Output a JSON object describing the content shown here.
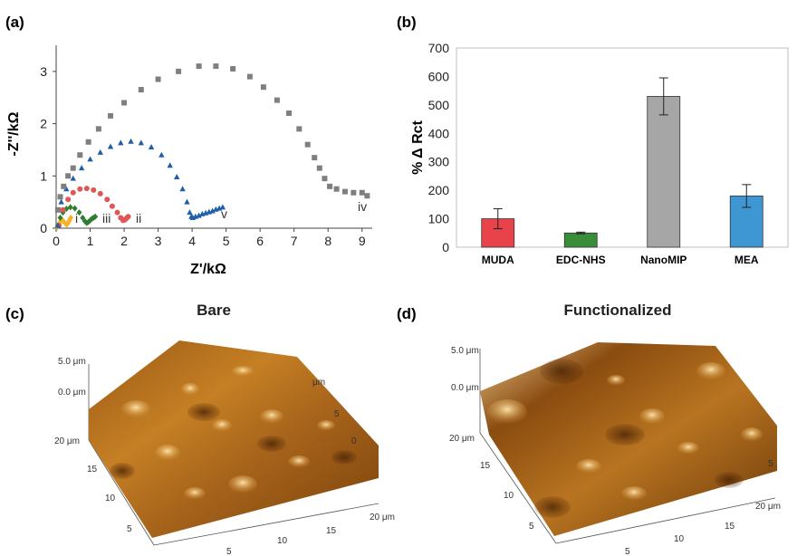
{
  "panels": {
    "a": {
      "label": "(a)"
    },
    "b": {
      "label": "(b)"
    },
    "c": {
      "label": "(c)",
      "title": "Bare"
    },
    "d": {
      "label": "(d)",
      "title": "Functionalized"
    }
  },
  "chart_data": [
    {
      "type": "scatter",
      "xlabel": "Z'/kΩ",
      "ylabel": "-Z''/kΩ",
      "xlim": [
        0,
        9.3
      ],
      "ylim": [
        0,
        3.5
      ],
      "x_ticks": [
        "0",
        "1",
        "2",
        "3",
        "4",
        "5",
        "6",
        "7",
        "8",
        "9"
      ],
      "y_ticks": [
        "0",
        "1",
        "2",
        "3"
      ],
      "grid": false,
      "series": [
        {
          "name": "i",
          "color": "#f5b325",
          "marker": "diamond",
          "x": [
            0.03,
            0.08,
            0.13,
            0.18,
            0.22,
            0.27,
            0.31,
            0.35,
            0.39,
            0.43
          ],
          "y": [
            0.02,
            0.08,
            0.13,
            0.15,
            0.13,
            0.09,
            0.07,
            0.1,
            0.15,
            0.2
          ]
        },
        {
          "name": "iii",
          "color": "#2e7d32",
          "marker": "diamond",
          "x": [
            0.05,
            0.12,
            0.2,
            0.3,
            0.42,
            0.55,
            0.68,
            0.78,
            0.85,
            0.9,
            0.95,
            1.0,
            1.05,
            1.1,
            1.15
          ],
          "y": [
            0.05,
            0.2,
            0.3,
            0.37,
            0.4,
            0.38,
            0.3,
            0.2,
            0.13,
            0.1,
            0.12,
            0.15,
            0.18,
            0.2,
            0.22
          ]
        },
        {
          "name": "ii",
          "color": "#e05555",
          "marker": "circle",
          "x": [
            0.08,
            0.2,
            0.35,
            0.5,
            0.7,
            0.9,
            1.1,
            1.3,
            1.5,
            1.65,
            1.8,
            1.9,
            1.97,
            2.02,
            2.07,
            2.12
          ],
          "y": [
            0.05,
            0.35,
            0.55,
            0.68,
            0.75,
            0.76,
            0.73,
            0.66,
            0.55,
            0.42,
            0.3,
            0.2,
            0.15,
            0.16,
            0.19,
            0.22
          ]
        },
        {
          "name": "v",
          "color": "#1f5fa8",
          "marker": "triangle",
          "x": [
            0.05,
            0.15,
            0.3,
            0.5,
            0.75,
            1.0,
            1.3,
            1.6,
            1.9,
            2.2,
            2.5,
            2.8,
            3.1,
            3.35,
            3.55,
            3.72,
            3.85,
            3.93,
            3.98,
            4.02,
            4.1,
            4.2,
            4.3,
            4.4,
            4.5,
            4.6,
            4.7,
            4.8,
            4.9
          ],
          "y": [
            0.05,
            0.5,
            0.75,
            0.95,
            1.15,
            1.32,
            1.45,
            1.56,
            1.63,
            1.66,
            1.63,
            1.55,
            1.4,
            1.2,
            0.98,
            0.75,
            0.5,
            0.3,
            0.22,
            0.2,
            0.22,
            0.24,
            0.27,
            0.29,
            0.31,
            0.33,
            0.36,
            0.38,
            0.4
          ]
        },
        {
          "name": "iv",
          "color": "#7f7f7f",
          "marker": "square",
          "x": [
            0.05,
            0.12,
            0.22,
            0.35,
            0.5,
            0.7,
            0.95,
            1.25,
            1.6,
            2.0,
            2.5,
            3.0,
            3.6,
            4.2,
            4.7,
            5.2,
            5.7,
            6.1,
            6.5,
            6.85,
            7.15,
            7.4,
            7.6,
            7.75,
            7.9,
            8.05,
            8.25,
            8.5,
            8.75,
            9.0,
            9.15
          ],
          "y": [
            0.35,
            0.6,
            0.8,
            1.0,
            1.15,
            1.4,
            1.65,
            1.9,
            2.15,
            2.4,
            2.65,
            2.85,
            3.0,
            3.1,
            3.1,
            3.05,
            2.9,
            2.7,
            2.45,
            2.2,
            1.9,
            1.6,
            1.35,
            1.15,
            0.95,
            0.8,
            0.75,
            0.7,
            0.68,
            0.68,
            0.62
          ]
        }
      ]
    },
    {
      "type": "bar",
      "ylabel": "% Δ Rct",
      "ylim": [
        0,
        700
      ],
      "y_ticks": [
        "0",
        "100",
        "200",
        "300",
        "400",
        "500",
        "600",
        "700"
      ],
      "categories": [
        "MUDA",
        "EDC-NHS",
        "NanoMIP",
        "MEA"
      ],
      "values": [
        100,
        50,
        530,
        180
      ],
      "errors": [
        35,
        3,
        65,
        40
      ],
      "colors": [
        "#e8424a",
        "#3a8e3a",
        "#a6a6a6",
        "#3e96d2"
      ],
      "grid": false
    }
  ],
  "afm": {
    "c": {
      "z_top": "5.0 μm",
      "z_zero": "0.0 μm",
      "y_ticks": [
        "20 μm",
        "15",
        "10",
        "5"
      ],
      "x_ticks": [
        "5",
        "10",
        "15",
        "20 μm"
      ],
      "right_ticks": [
        "μm",
        "5",
        "0"
      ]
    },
    "d": {
      "z_top": "5.0 μm",
      "z_zero": "0.0 μm",
      "y_ticks": [
        "20 μm",
        "15",
        "10",
        "5"
      ],
      "x_ticks": [
        "5",
        "10",
        "15",
        "20 μm"
      ],
      "right_ticks": [
        "5"
      ]
    }
  }
}
